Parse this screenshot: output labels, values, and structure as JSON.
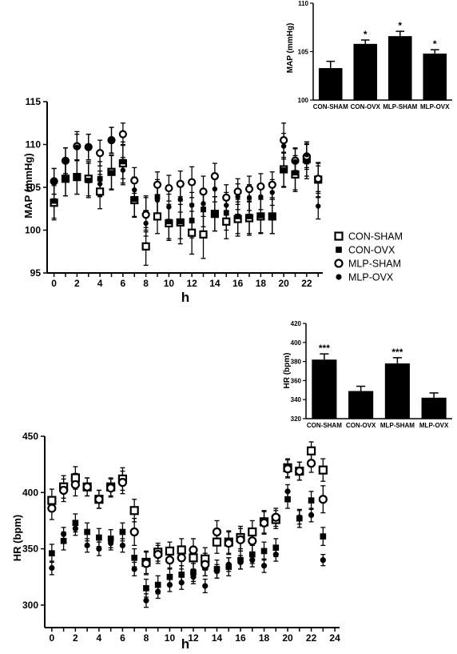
{
  "chart_data": [
    {
      "id": "map_bar",
      "type": "bar",
      "ylabel": "MAP (mmHg)",
      "xlabel": "",
      "ylim": [
        100,
        110
      ],
      "yticks": [
        100,
        105,
        110
      ],
      "categories": [
        "CON-SHAM",
        "CON-OVX",
        "MLP-SHAM",
        "MLP-OVX"
      ],
      "values": [
        103.3,
        105.8,
        106.6,
        104.8
      ],
      "errors": [
        0.7,
        0.4,
        0.5,
        0.4
      ],
      "significance": [
        "",
        "*",
        "*",
        "*"
      ]
    },
    {
      "id": "map_line",
      "type": "scatter",
      "ylabel": "MAP (mmHg)",
      "xlabel": "h",
      "ylim": [
        95,
        115
      ],
      "yticks": [
        95,
        100,
        105,
        110,
        115
      ],
      "xlim": [
        -0.6,
        23.4
      ],
      "xticks": [
        0,
        2,
        4,
        6,
        8,
        10,
        12,
        14,
        16,
        18,
        20,
        22
      ],
      "x": [
        0,
        1,
        2,
        3,
        4,
        5,
        6,
        7,
        8,
        9,
        10,
        11,
        12,
        13,
        14,
        15,
        16,
        17,
        18,
        19,
        20,
        21,
        22,
        23
      ],
      "series": [
        {
          "name": "CON-SHAM",
          "marker": "open-square",
          "values": [
            103.2,
            106.0,
            106.2,
            106.0,
            104.5,
            106.8,
            107.8,
            103.5,
            98.1,
            101.6,
            100.8,
            100.9,
            99.7,
            99.5,
            101.9,
            101.0,
            101.3,
            101.4,
            101.6,
            101.6,
            107.1,
            106.5,
            108.3,
            105.9
          ],
          "errors": [
            2.0,
            2.0,
            2.0,
            2.0,
            2.0,
            2.0,
            2.5,
            2.0,
            2.2,
            2.0,
            2.0,
            2.5,
            2.5,
            2.8,
            2.0,
            2.0,
            2.0,
            2.0,
            2.0,
            2.0,
            2.0,
            2.0,
            2.0,
            2.0
          ]
        },
        {
          "name": "CON-OVX",
          "marker": "filled-square",
          "values": [
            103.4,
            106.0,
            106.2,
            105.8,
            106.0,
            106.7,
            108.0,
            103.6,
            102.0,
            103.9,
            101.0,
            101.0,
            101.1,
            102.4,
            101.9,
            102.0,
            101.6,
            101.6,
            101.7,
            101.6,
            107.0,
            106.7,
            108.0,
            105.8
          ],
          "errors": [
            2.0,
            2.0,
            2.0,
            2.0,
            2.0,
            2.0,
            2.0,
            2.0,
            2.0,
            2.0,
            2.0,
            2.0,
            2.0,
            2.0,
            2.0,
            2.0,
            2.0,
            2.0,
            2.0,
            2.0,
            2.0,
            2.0,
            2.0,
            2.0
          ]
        },
        {
          "name": "MLP-SHAM",
          "marker": "open-circle",
          "values": [
            105.7,
            108.1,
            109.8,
            109.7,
            109.0,
            110.5,
            111.2,
            105.8,
            101.8,
            105.3,
            104.9,
            105.4,
            105.6,
            104.5,
            106.3,
            103.8,
            104.5,
            104.8,
            105.1,
            105.3,
            110.5,
            108.1,
            108.6,
            106.0
          ],
          "errors": [
            1.5,
            1.5,
            1.7,
            1.5,
            1.5,
            1.5,
            1.3,
            1.5,
            2.0,
            1.5,
            1.5,
            1.5,
            1.8,
            1.8,
            1.5,
            1.5,
            1.5,
            1.5,
            1.5,
            1.5,
            2.0,
            1.5,
            1.5,
            1.5
          ]
        },
        {
          "name": "MLP-OVX",
          "marker": "filled-circle",
          "values": [
            105.7,
            108.1,
            109.7,
            109.7,
            105.4,
            110.5,
            107.0,
            104.7,
            100.8,
            103.5,
            102.7,
            103.6,
            102.9,
            103.1,
            104.8,
            102.9,
            103.9,
            103.8,
            103.9,
            104.4,
            109.8,
            108.0,
            108.8,
            102.8
          ],
          "errors": [
            1.5,
            1.5,
            1.5,
            1.5,
            1.5,
            1.5,
            1.5,
            1.5,
            1.5,
            1.5,
            1.5,
            1.5,
            1.5,
            1.5,
            1.5,
            1.5,
            1.5,
            1.5,
            1.5,
            1.5,
            1.5,
            1.5,
            1.5,
            1.5
          ]
        }
      ],
      "legend": "right"
    },
    {
      "id": "hr_bar",
      "type": "bar",
      "ylabel": "HR (bpm)",
      "xlabel": "",
      "ylim": [
        320,
        420
      ],
      "yticks": [
        320,
        340,
        360,
        380,
        400,
        420
      ],
      "categories": [
        "CON-SHAM",
        "CON-OVX",
        "MLP-SHAM",
        "MLP-OVX"
      ],
      "values": [
        382,
        349,
        378,
        342
      ],
      "errors": [
        6,
        5,
        6,
        5
      ],
      "significance": [
        "***",
        "",
        "***",
        ""
      ]
    },
    {
      "id": "hr_line",
      "type": "scatter",
      "ylabel": "HR (bpm)",
      "xlabel": "h",
      "ylim": [
        280,
        450
      ],
      "yticks": [
        300,
        350,
        400,
        450
      ],
      "xlim": [
        -0.6,
        24.4
      ],
      "xticks": [
        0,
        2,
        4,
        6,
        8,
        10,
        12,
        14,
        16,
        18,
        20,
        22,
        24
      ],
      "x": [
        0,
        1,
        2,
        3,
        4,
        5,
        6,
        7,
        8,
        9,
        10,
        11,
        12,
        13,
        14,
        15,
        16,
        17,
        18,
        19,
        20,
        21,
        22,
        23
      ],
      "series": [
        {
          "name": "CON-SHAM",
          "marker": "open-square",
          "values": [
            393,
            405,
            413,
            405,
            394,
            405,
            412,
            384,
            338,
            347,
            348,
            349,
            342,
            341,
            356,
            356,
            360,
            365,
            374,
            376,
            422,
            419,
            437,
            420
          ],
          "errors": [
            10,
            10,
            10,
            8,
            8,
            8,
            10,
            10,
            10,
            8,
            8,
            10,
            10,
            10,
            10,
            10,
            10,
            10,
            10,
            8,
            8,
            8,
            8,
            10
          ]
        },
        {
          "name": "CON-OVX",
          "marker": "filled-square",
          "values": [
            346,
            357,
            373,
            365,
            360,
            359,
            365,
            342,
            315,
            318,
            325,
            327,
            329,
            334,
            332,
            334,
            340,
            345,
            348,
            351,
            394,
            377,
            393,
            361
          ],
          "errors": [
            8,
            8,
            8,
            8,
            8,
            8,
            8,
            8,
            8,
            8,
            8,
            8,
            8,
            8,
            8,
            8,
            8,
            8,
            8,
            8,
            8,
            8,
            8,
            8
          ]
        },
        {
          "name": "MLP-SHAM",
          "marker": "open-circle",
          "values": [
            386,
            402,
            407,
            405,
            394,
            404,
            409,
            365,
            337,
            345,
            340,
            342,
            349,
            336,
            365,
            355,
            358,
            357,
            373,
            378,
            421,
            419,
            426,
            394
          ],
          "errors": [
            10,
            10,
            10,
            8,
            8,
            8,
            10,
            12,
            10,
            8,
            8,
            10,
            10,
            10,
            10,
            10,
            10,
            10,
            10,
            8,
            8,
            8,
            8,
            12
          ]
        },
        {
          "name": "MLP-OVX",
          "marker": "filled-circle",
          "values": [
            333,
            363,
            368,
            353,
            350,
            355,
            353,
            332,
            304,
            312,
            318,
            320,
            325,
            317,
            330,
            336,
            338,
            340,
            335,
            345,
            401,
            378,
            380,
            340
          ],
          "errors": [
            6,
            6,
            6,
            6,
            6,
            6,
            6,
            6,
            6,
            6,
            6,
            6,
            6,
            6,
            6,
            6,
            6,
            6,
            6,
            6,
            6,
            6,
            6,
            5
          ]
        }
      ]
    }
  ]
}
